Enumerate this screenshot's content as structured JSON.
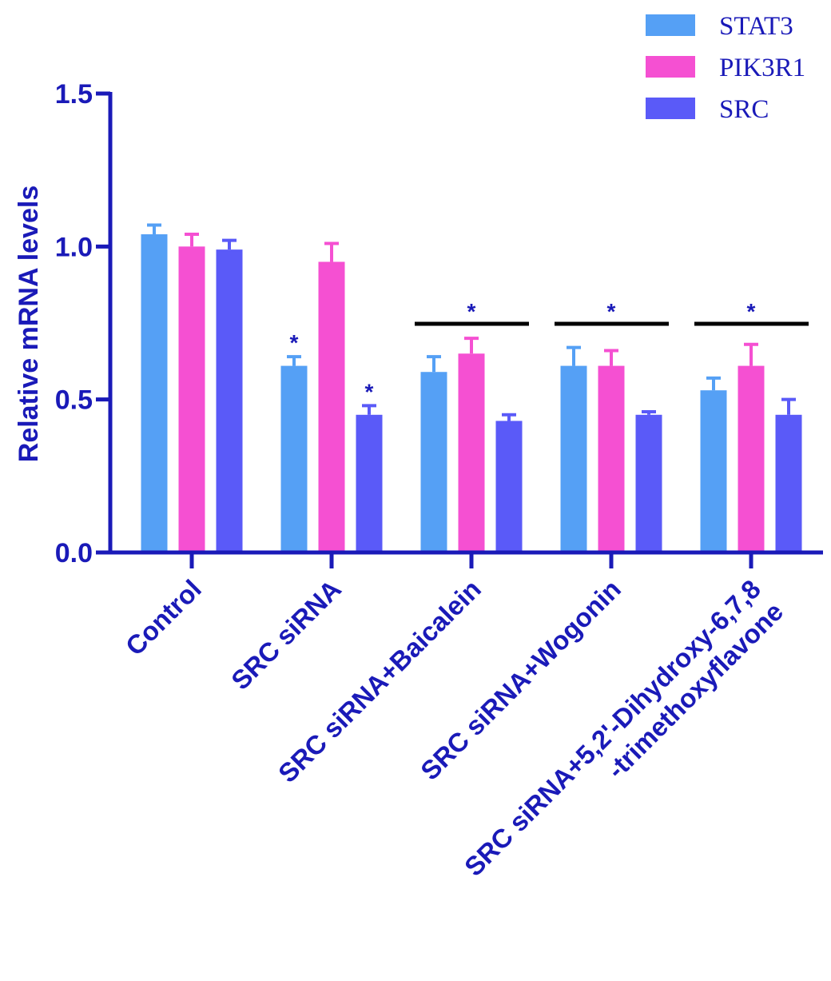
{
  "chart_data": {
    "type": "bar",
    "title": "",
    "xlabel": "",
    "ylabel": "Relative mRNA levels",
    "ylim": [
      0,
      1.5
    ],
    "yticks": [
      "0.0",
      "0.5",
      "1.0",
      "1.5"
    ],
    "grid": false,
    "legend": "top-right",
    "categories": [
      [
        "Control"
      ],
      [
        "SRC siRNA"
      ],
      [
        "SRC siRNA+Baicalein"
      ],
      [
        "SRC siRNA+Wogonin"
      ],
      [
        "SRC siRNA+5,2'-Dihydroxy-6,7,8",
        "-trimethoxyflavone"
      ]
    ],
    "series": [
      {
        "name": "STAT3",
        "color": "#55a0f5",
        "values": [
          1.04,
          0.61,
          0.59,
          0.61,
          0.53
        ],
        "errors": [
          0.03,
          0.03,
          0.05,
          0.06,
          0.04
        ]
      },
      {
        "name": "PIK3R1",
        "color": "#f550d2",
        "values": [
          1.0,
          0.95,
          0.65,
          0.61,
          0.61
        ],
        "errors": [
          0.04,
          0.06,
          0.05,
          0.05,
          0.07
        ]
      },
      {
        "name": "SRC",
        "color": "#5a5af8",
        "values": [
          0.99,
          0.45,
          0.43,
          0.45,
          0.45
        ],
        "errors": [
          0.03,
          0.03,
          0.02,
          0.01,
          0.05
        ]
      }
    ],
    "significance": {
      "symbol": "*",
      "bar_marks": [
        {
          "category": 1,
          "series": 0
        },
        {
          "category": 1,
          "series": 2
        }
      ],
      "group_marks": [
        2,
        3,
        4
      ]
    }
  }
}
